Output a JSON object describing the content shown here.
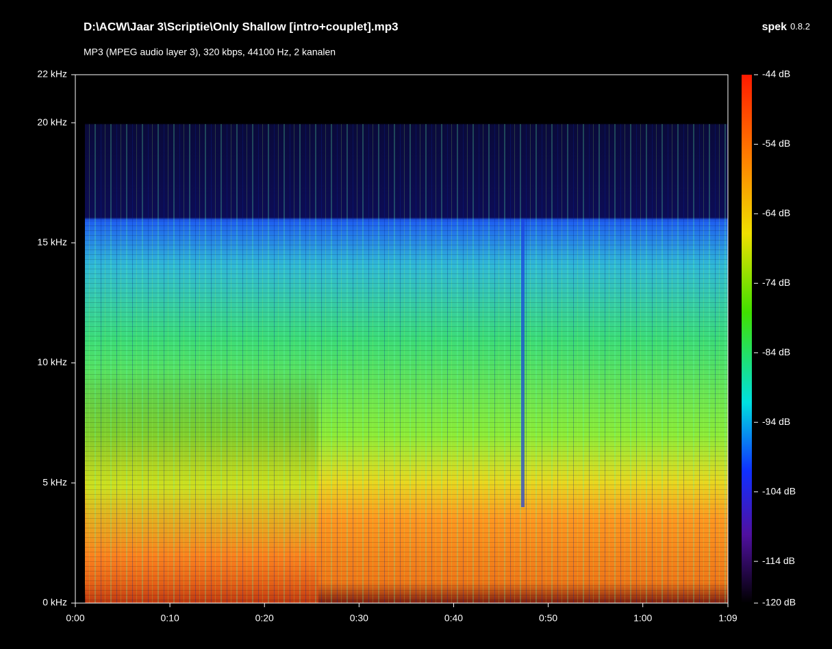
{
  "chart_data": {
    "type": "heatmap",
    "title": "D:\\ACW\\Jaar 3\\Scriptie\\Only Shallow [intro+couplet].mp3",
    "subtitle": "MP3 (MPEG audio layer 3), 320 kbps, 44100 Hz, 2 kanalen",
    "app_name": "spek",
    "app_version": "0.8.2",
    "xlim": [
      0,
      69
    ],
    "xticks": [
      {
        "value": 0,
        "label": "0:00"
      },
      {
        "value": 10,
        "label": "0:10"
      },
      {
        "value": 20,
        "label": "0:20"
      },
      {
        "value": 30,
        "label": "0:30"
      },
      {
        "value": 40,
        "label": "0:40"
      },
      {
        "value": 50,
        "label": "0:50"
      },
      {
        "value": 60,
        "label": "1:00"
      },
      {
        "value": 69,
        "label": "1:09"
      }
    ],
    "ylim": [
      0,
      22
    ],
    "yticks": [
      {
        "value": 0,
        "label": "0 kHz"
      },
      {
        "value": 5,
        "label": "5 kHz"
      },
      {
        "value": 10,
        "label": "10 kHz"
      },
      {
        "value": 15,
        "label": "15 kHz"
      },
      {
        "value": 20,
        "label": "20 kHz"
      },
      {
        "value": 22,
        "label": "22 kHz"
      }
    ],
    "colorbar": {
      "lim": [
        -120,
        -44
      ],
      "ticks": [
        {
          "value": -44,
          "label": "-44 dB"
        },
        {
          "value": -54,
          "label": "-54 dB"
        },
        {
          "value": -64,
          "label": "-64 dB"
        },
        {
          "value": -74,
          "label": "-74 dB"
        },
        {
          "value": -84,
          "label": "-84 dB"
        },
        {
          "value": -94,
          "label": "-94 dB"
        },
        {
          "value": -104,
          "label": "-104 dB"
        },
        {
          "value": -114,
          "label": "-114 dB"
        },
        {
          "value": -120,
          "label": "-120 dB"
        }
      ]
    }
  }
}
